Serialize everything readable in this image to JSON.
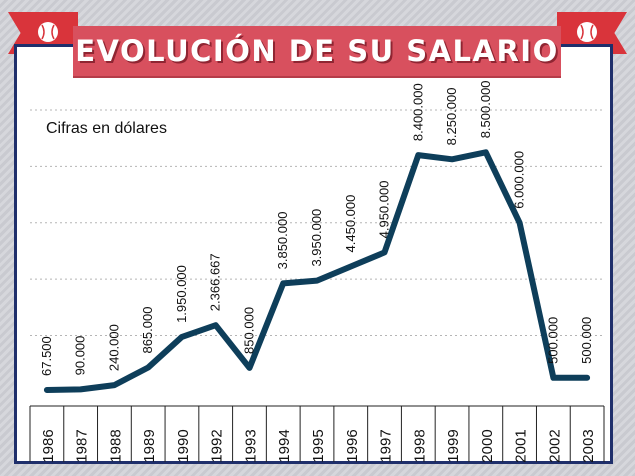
{
  "title": "EVOLUCIÓN DE SU SALARIO",
  "icons": [
    "baseball-icon-left",
    "baseball-icon-right"
  ],
  "colors": {
    "ribbon": "#d9343b",
    "banner": "#d8505e",
    "line": "#0e3e5a",
    "frame": "#1f2f6b"
  },
  "chart_data": {
    "type": "line",
    "title": "EVOLUCIÓN DE SU SALARIO",
    "ylabel": "Cifras en dólares",
    "xlabel": "",
    "categories": [
      "1986",
      "1987",
      "1988",
      "1989",
      "1990",
      "1992",
      "1993",
      "1994",
      "1995",
      "1996",
      "1997",
      "1998",
      "1999",
      "2000",
      "2001",
      "2002",
      "2003"
    ],
    "values": [
      67500,
      90000,
      240000,
      865000,
      1950000,
      2366667,
      850000,
      3850000,
      3950000,
      4450000,
      4950000,
      8400000,
      8250000,
      8500000,
      6000000,
      500000,
      500000
    ],
    "labels": [
      "67.500",
      "90.000",
      "240.000",
      "865.000",
      "1.950.000",
      "2.366.667",
      "850.000",
      "3.850.000",
      "3.950.000",
      "4.450.000",
      "4.950.000",
      "8.400.000",
      "8.250.000",
      "8.500.000",
      "6.000.000",
      "500.000",
      "500.000"
    ],
    "ylim": [
      -500000,
      10000000
    ],
    "grid": true,
    "gridlines": [
      2000000,
      4000000,
      6000000,
      8000000,
      10000000
    ]
  }
}
